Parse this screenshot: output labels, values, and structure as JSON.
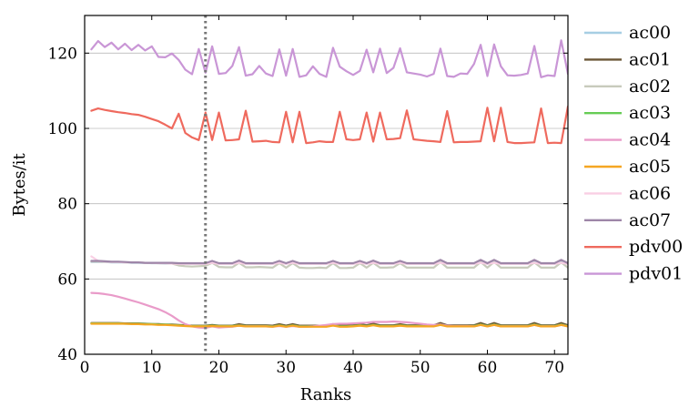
{
  "chart_data": {
    "type": "line",
    "title": "",
    "xlabel": "Ranks",
    "ylabel": "Bytes/it",
    "xlim": [
      0,
      72
    ],
    "ylim": [
      40,
      130
    ],
    "xticks": [
      0,
      10,
      20,
      30,
      40,
      50,
      60,
      70
    ],
    "yticks": [
      40,
      60,
      80,
      100,
      120
    ],
    "grid": "horizontal",
    "legend": "right-outside",
    "vline": {
      "x": 18,
      "style": "dotted",
      "color": "#777777"
    },
    "x": [
      1,
      2,
      3,
      4,
      5,
      6,
      7,
      8,
      9,
      10,
      11,
      12,
      13,
      14,
      15,
      16,
      17,
      18,
      19,
      20,
      21,
      22,
      23,
      24,
      25,
      26,
      27,
      28,
      29,
      30,
      31,
      32,
      33,
      34,
      35,
      36,
      37,
      38,
      39,
      40,
      41,
      42,
      43,
      44,
      45,
      46,
      47,
      48,
      49,
      50,
      51,
      52,
      53,
      54,
      55,
      56,
      57,
      58,
      59,
      60,
      61,
      62,
      63,
      64,
      65,
      66,
      67,
      68,
      69,
      70,
      71,
      72
    ],
    "series": [
      {
        "name": "ac00",
        "color": "#a6cee3",
        "values": [
          64.5,
          64.5,
          64.5,
          64.4,
          64.4,
          64.4,
          64.3,
          64.3,
          64.3,
          64.2,
          64.2,
          64.1,
          64.1,
          64.0,
          64.0,
          64.0,
          64.0,
          64.0,
          64.5,
          64.0,
          64.0,
          64.0,
          64.5,
          64.0,
          64.0,
          64.0,
          64.0,
          64.0,
          64.5,
          64.0,
          64.5,
          64.0,
          64.0,
          64.0,
          64.0,
          64.0,
          64.5,
          64.0,
          64.0,
          64.0,
          64.5,
          64.0,
          64.5,
          64.0,
          64.0,
          64.0,
          64.5,
          64.0,
          64.0,
          64.0,
          64.0,
          64.0,
          64.5,
          64.0,
          64.0,
          64.0,
          64.0,
          64.0,
          64.5,
          64.0,
          64.5,
          64.0,
          64.0,
          64.0,
          64.0,
          64.0,
          64.5,
          64.0,
          64.0,
          64.0,
          64.5,
          64.0
        ]
      },
      {
        "name": "ac01",
        "color": "#6b5636",
        "values": [
          48.3,
          48.3,
          48.3,
          48.3,
          48.3,
          48.2,
          48.2,
          48.2,
          48.1,
          48.0,
          48.0,
          47.9,
          47.9,
          47.8,
          47.7,
          47.6,
          47.6,
          47.6,
          47.8,
          47.6,
          47.6,
          47.6,
          48.0,
          47.7,
          47.7,
          47.7,
          47.7,
          47.6,
          48.0,
          47.6,
          48.0,
          47.6,
          47.6,
          47.6,
          47.6,
          47.6,
          48.0,
          47.6,
          47.6,
          47.7,
          48.0,
          47.7,
          48.1,
          47.7,
          47.7,
          47.7,
          48.0,
          47.7,
          47.7,
          47.7,
          47.7,
          47.7,
          48.3,
          47.7,
          47.7,
          47.7,
          47.7,
          47.7,
          48.3,
          47.7,
          48.3,
          47.7,
          47.7,
          47.7,
          47.7,
          47.7,
          48.3,
          47.7,
          47.7,
          47.7,
          48.3,
          47.7
        ]
      },
      {
        "name": "ac02",
        "color": "#c8cbbc",
        "values": [
          64.6,
          64.6,
          64.5,
          64.5,
          64.5,
          64.4,
          64.4,
          64.4,
          64.3,
          64.3,
          64.2,
          64.2,
          64.1,
          63.6,
          63.4,
          63.3,
          63.4,
          63.5,
          64.3,
          63.2,
          63.1,
          63.1,
          64.3,
          63.1,
          63.1,
          63.2,
          63.1,
          63.0,
          64.2,
          63.0,
          64.2,
          63.0,
          62.9,
          62.9,
          63.0,
          62.9,
          64.2,
          62.9,
          62.9,
          63.0,
          64.2,
          63.0,
          64.3,
          63.0,
          63.0,
          63.1,
          64.2,
          63.0,
          63.0,
          63.0,
          63.0,
          63.0,
          64.5,
          63.0,
          63.0,
          63.0,
          63.0,
          63.0,
          64.5,
          63.0,
          64.5,
          63.0,
          63.0,
          63.0,
          63.0,
          63.0,
          64.4,
          63.0,
          63.0,
          63.0,
          64.4,
          63.0
        ]
      },
      {
        "name": "ac03",
        "color": "#66cc55",
        "values": [
          48.2,
          48.2,
          48.2,
          48.2,
          48.2,
          48.1,
          48.1,
          48.1,
          48.0,
          48.0,
          47.9,
          47.9,
          47.8,
          47.7,
          47.6,
          47.5,
          47.5,
          47.5,
          47.6,
          47.5,
          47.5,
          47.5,
          47.7,
          47.5,
          47.5,
          47.5,
          47.5,
          47.4,
          47.7,
          47.4,
          47.7,
          47.4,
          47.4,
          47.4,
          47.4,
          47.4,
          47.7,
          47.4,
          47.4,
          47.5,
          47.7,
          47.5,
          47.8,
          47.5,
          47.5,
          47.5,
          47.7,
          47.5,
          47.5,
          47.5,
          47.5,
          47.5,
          47.9,
          47.5,
          47.5,
          47.5,
          47.5,
          47.5,
          47.9,
          47.5,
          47.9,
          47.5,
          47.5,
          47.5,
          47.5,
          47.5,
          47.9,
          47.5,
          47.5,
          47.5,
          47.9,
          47.5
        ]
      },
      {
        "name": "ac04",
        "color": "#e99bc9",
        "values": [
          56.3,
          56.2,
          56.0,
          55.7,
          55.3,
          54.8,
          54.3,
          53.8,
          53.2,
          52.6,
          52.0,
          51.2,
          50.2,
          49.0,
          48.0,
          47.4,
          47.1,
          47.0,
          47.4,
          47.1,
          47.2,
          47.3,
          47.6,
          47.4,
          47.4,
          47.4,
          47.4,
          47.3,
          47.5,
          47.3,
          47.5,
          47.3,
          47.3,
          47.4,
          47.6,
          47.8,
          48.0,
          48.1,
          48.1,
          48.2,
          48.3,
          48.4,
          48.6,
          48.6,
          48.6,
          48.7,
          48.6,
          48.5,
          48.3,
          48.1,
          47.9,
          47.8,
          47.9,
          47.6,
          47.5,
          47.5,
          47.5,
          47.4,
          47.8,
          47.4,
          47.8,
          47.4,
          47.4,
          47.4,
          47.4,
          47.4,
          47.8,
          47.4,
          47.4,
          47.4,
          47.8,
          47.4
        ]
      },
      {
        "name": "ac05",
        "color": "#f5a623",
        "values": [
          48.1,
          48.1,
          48.1,
          48.1,
          48.1,
          48.1,
          48.0,
          48.0,
          47.9,
          47.9,
          47.8,
          47.8,
          47.7,
          47.6,
          47.5,
          47.4,
          47.4,
          47.4,
          47.5,
          47.4,
          47.4,
          47.4,
          47.6,
          47.4,
          47.4,
          47.4,
          47.4,
          47.3,
          47.6,
          47.3,
          47.6,
          47.3,
          47.3,
          47.3,
          47.3,
          47.3,
          47.6,
          47.3,
          47.3,
          47.4,
          47.6,
          47.4,
          47.7,
          47.4,
          47.4,
          47.4,
          47.6,
          47.4,
          47.4,
          47.4,
          47.4,
          47.4,
          47.8,
          47.4,
          47.4,
          47.4,
          47.4,
          47.4,
          47.8,
          47.4,
          47.8,
          47.4,
          47.4,
          47.4,
          47.4,
          47.4,
          47.8,
          47.4,
          47.4,
          47.4,
          47.8,
          47.4
        ]
      },
      {
        "name": "ac06",
        "color": "#f9cfe4",
        "values": [
          66.0,
          64.8,
          64.6,
          64.5,
          64.5,
          64.4,
          64.4,
          64.4,
          64.3,
          64.3,
          64.2,
          64.2,
          64.1,
          64.0,
          64.0,
          64.0,
          64.0,
          64.0,
          64.3,
          64.0,
          64.0,
          64.0,
          64.3,
          64.0,
          64.0,
          64.0,
          64.0,
          64.0,
          64.3,
          64.0,
          64.3,
          64.0,
          64.0,
          64.0,
          64.0,
          64.0,
          64.3,
          64.0,
          64.0,
          64.0,
          64.3,
          64.0,
          64.3,
          64.0,
          64.0,
          64.0,
          64.3,
          64.0,
          64.0,
          64.0,
          64.0,
          64.0,
          64.3,
          64.0,
          64.0,
          64.0,
          64.0,
          64.0,
          64.3,
          64.0,
          64.3,
          64.0,
          64.0,
          64.0,
          64.0,
          64.0,
          64.3,
          64.0,
          64.0,
          64.0,
          64.3,
          64.0
        ]
      },
      {
        "name": "ac07",
        "color": "#9e86a8",
        "values": [
          64.8,
          64.8,
          64.7,
          64.6,
          64.6,
          64.5,
          64.4,
          64.4,
          64.3,
          64.3,
          64.3,
          64.3,
          64.3,
          64.2,
          64.2,
          64.2,
          64.2,
          64.2,
          64.8,
          64.2,
          64.2,
          64.2,
          64.9,
          64.2,
          64.2,
          64.2,
          64.2,
          64.2,
          64.8,
          64.2,
          64.8,
          64.2,
          64.2,
          64.2,
          64.2,
          64.2,
          64.8,
          64.2,
          64.2,
          64.2,
          64.8,
          64.2,
          64.9,
          64.2,
          64.2,
          64.2,
          64.8,
          64.2,
          64.2,
          64.2,
          64.2,
          64.2,
          65.1,
          64.2,
          64.2,
          64.2,
          64.2,
          64.2,
          65.1,
          64.2,
          65.1,
          64.2,
          64.2,
          64.2,
          64.2,
          64.2,
          65.1,
          64.2,
          64.2,
          64.2,
          65.1,
          64.2
        ]
      },
      {
        "name": "pdv00",
        "color": "#ef6a5e",
        "values": [
          104.7,
          105.3,
          104.9,
          104.6,
          104.3,
          104.1,
          103.8,
          103.6,
          103.1,
          102.5,
          101.9,
          101.0,
          100.0,
          103.9,
          98.8,
          97.6,
          96.9,
          104.2,
          96.9,
          104.2,
          96.8,
          96.9,
          97.1,
          104.7,
          96.5,
          96.6,
          96.7,
          96.4,
          96.3,
          104.4,
          96.3,
          104.4,
          96.1,
          96.3,
          96.6,
          96.4,
          96.4,
          104.4,
          97.1,
          96.9,
          97.1,
          104.2,
          96.5,
          104.2,
          97.1,
          97.2,
          97.4,
          104.8,
          97.1,
          96.9,
          96.7,
          96.6,
          96.4,
          104.6,
          96.3,
          96.4,
          96.4,
          96.5,
          96.6,
          105.5,
          96.6,
          105.5,
          96.4,
          96.1,
          96.1,
          96.2,
          96.3,
          105.3,
          96.1,
          96.2,
          96.1,
          105.8
        ]
      },
      {
        "name": "pdv01",
        "color": "#c996d6",
        "values": [
          121.0,
          123.2,
          121.6,
          122.8,
          121.0,
          122.5,
          120.8,
          122.2,
          120.7,
          121.8,
          119.0,
          118.9,
          119.9,
          118.2,
          115.6,
          114.4,
          121.1,
          114.8,
          121.8,
          114.5,
          114.7,
          116.6,
          121.6,
          114.0,
          114.4,
          116.6,
          114.6,
          113.9,
          121.0,
          114.0,
          121.1,
          113.7,
          114.1,
          116.5,
          114.5,
          113.7,
          121.4,
          116.4,
          115.2,
          114.2,
          115.3,
          120.9,
          114.9,
          121.2,
          114.7,
          116.1,
          121.3,
          114.9,
          114.6,
          114.3,
          113.8,
          114.5,
          121.2,
          113.9,
          113.7,
          114.6,
          114.5,
          117.1,
          122.2,
          113.9,
          122.3,
          116.5,
          114.1,
          114.0,
          114.2,
          114.6,
          121.9,
          113.6,
          114.1,
          113.9,
          123.4,
          114.5
        ]
      }
    ]
  }
}
